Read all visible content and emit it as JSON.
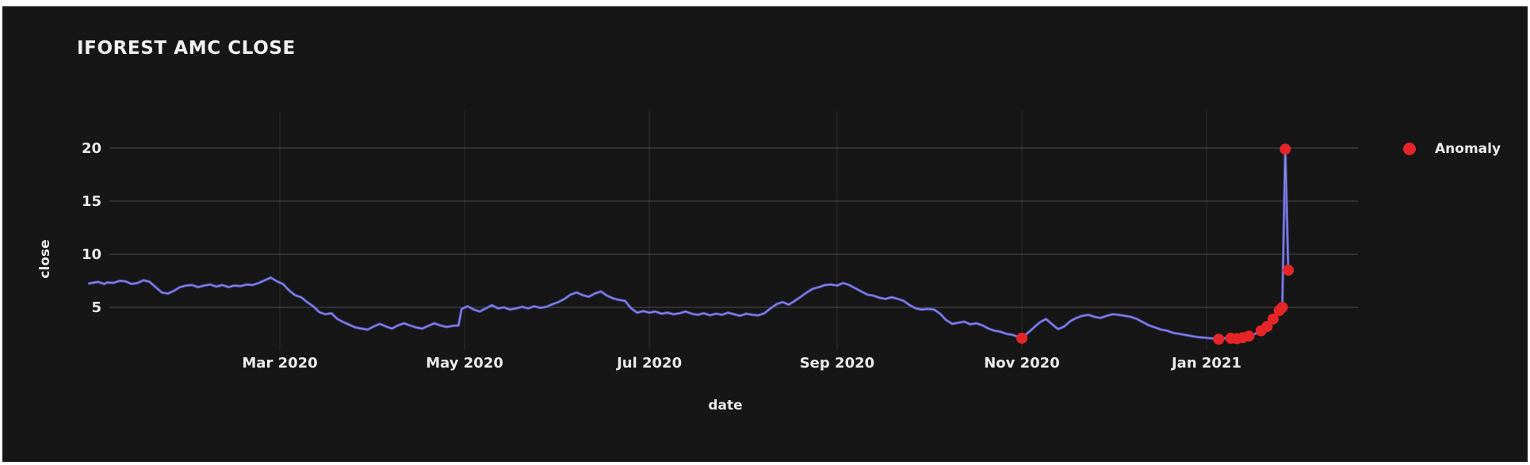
{
  "chart_data": {
    "type": "line",
    "title": "IFOREST AMC CLOSE",
    "xlabel": "date",
    "ylabel": "close",
    "x_unit": "days since 2020-01-01",
    "x_range": [
      -3.1,
      416
    ],
    "y_range": [
      0.97,
      23.5
    ],
    "grid": true,
    "legend_position": "right",
    "legend": [
      {
        "label": "Anomaly"
      }
    ],
    "y_ticks": [
      5,
      10,
      15,
      20
    ],
    "x_ticks": [
      {
        "label": "Mar 2020",
        "day": 60
      },
      {
        "label": "May 2020",
        "day": 121
      },
      {
        "label": "Jul 2020",
        "day": 182
      },
      {
        "label": "Sep 2020",
        "day": 244
      },
      {
        "label": "Nov 2020",
        "day": 305
      },
      {
        "label": "Jan 2021",
        "day": 366
      }
    ],
    "series": [
      {
        "name": "close",
        "points": [
          [
            -3,
            7.25
          ],
          [
            0,
            7.4
          ],
          [
            2,
            7.2
          ],
          [
            3,
            7.35
          ],
          [
            5,
            7.3
          ],
          [
            7,
            7.5
          ],
          [
            9,
            7.45
          ],
          [
            11,
            7.2
          ],
          [
            13,
            7.3
          ],
          [
            15,
            7.55
          ],
          [
            17,
            7.4
          ],
          [
            19,
            6.9
          ],
          [
            21,
            6.4
          ],
          [
            23,
            6.3
          ],
          [
            25,
            6.55
          ],
          [
            27,
            6.9
          ],
          [
            29,
            7.05
          ],
          [
            31,
            7.1
          ],
          [
            33,
            6.9
          ],
          [
            35,
            7.05
          ],
          [
            37,
            7.15
          ],
          [
            39,
            6.95
          ],
          [
            41,
            7.1
          ],
          [
            43,
            6.9
          ],
          [
            45,
            7.05
          ],
          [
            47,
            7.0
          ],
          [
            49,
            7.15
          ],
          [
            51,
            7.1
          ],
          [
            53,
            7.3
          ],
          [
            55,
            7.55
          ],
          [
            57,
            7.8
          ],
          [
            59,
            7.45
          ],
          [
            61,
            7.2
          ],
          [
            63,
            6.6
          ],
          [
            65,
            6.15
          ],
          [
            67,
            5.95
          ],
          [
            69,
            5.5
          ],
          [
            71,
            5.1
          ],
          [
            73,
            4.55
          ],
          [
            75,
            4.35
          ],
          [
            77,
            4.45
          ],
          [
            79,
            3.9
          ],
          [
            81,
            3.6
          ],
          [
            83,
            3.35
          ],
          [
            85,
            3.1
          ],
          [
            87,
            3.0
          ],
          [
            89,
            2.9
          ],
          [
            91,
            3.2
          ],
          [
            93,
            3.45
          ],
          [
            95,
            3.2
          ],
          [
            97,
            3.0
          ],
          [
            99,
            3.3
          ],
          [
            101,
            3.5
          ],
          [
            103,
            3.3
          ],
          [
            105,
            3.1
          ],
          [
            107,
            3.0
          ],
          [
            109,
            3.25
          ],
          [
            111,
            3.5
          ],
          [
            113,
            3.3
          ],
          [
            115,
            3.15
          ],
          [
            117,
            3.25
          ],
          [
            119,
            3.3
          ],
          [
            120,
            4.85
          ],
          [
            122,
            5.1
          ],
          [
            124,
            4.8
          ],
          [
            126,
            4.6
          ],
          [
            128,
            4.9
          ],
          [
            130,
            5.2
          ],
          [
            132,
            4.9
          ],
          [
            134,
            5.0
          ],
          [
            136,
            4.8
          ],
          [
            138,
            4.9
          ],
          [
            140,
            5.05
          ],
          [
            142,
            4.9
          ],
          [
            144,
            5.1
          ],
          [
            146,
            4.95
          ],
          [
            148,
            5.05
          ],
          [
            150,
            5.3
          ],
          [
            152,
            5.5
          ],
          [
            154,
            5.8
          ],
          [
            156,
            6.2
          ],
          [
            158,
            6.4
          ],
          [
            160,
            6.15
          ],
          [
            162,
            6.0
          ],
          [
            164,
            6.3
          ],
          [
            166,
            6.5
          ],
          [
            168,
            6.1
          ],
          [
            170,
            5.85
          ],
          [
            172,
            5.7
          ],
          [
            174,
            5.6
          ],
          [
            176,
            4.9
          ],
          [
            178,
            4.5
          ],
          [
            180,
            4.65
          ],
          [
            182,
            4.5
          ],
          [
            184,
            4.6
          ],
          [
            186,
            4.4
          ],
          [
            188,
            4.5
          ],
          [
            190,
            4.35
          ],
          [
            192,
            4.45
          ],
          [
            194,
            4.6
          ],
          [
            196,
            4.4
          ],
          [
            198,
            4.3
          ],
          [
            200,
            4.45
          ],
          [
            202,
            4.25
          ],
          [
            204,
            4.4
          ],
          [
            206,
            4.3
          ],
          [
            208,
            4.5
          ],
          [
            210,
            4.35
          ],
          [
            212,
            4.2
          ],
          [
            214,
            4.4
          ],
          [
            216,
            4.3
          ],
          [
            218,
            4.25
          ],
          [
            220,
            4.45
          ],
          [
            222,
            4.9
          ],
          [
            224,
            5.3
          ],
          [
            226,
            5.5
          ],
          [
            228,
            5.25
          ],
          [
            230,
            5.6
          ],
          [
            232,
            6.0
          ],
          [
            234,
            6.4
          ],
          [
            236,
            6.75
          ],
          [
            238,
            6.9
          ],
          [
            240,
            7.1
          ],
          [
            242,
            7.15
          ],
          [
            244,
            7.05
          ],
          [
            246,
            7.3
          ],
          [
            248,
            7.1
          ],
          [
            250,
            6.8
          ],
          [
            252,
            6.5
          ],
          [
            254,
            6.2
          ],
          [
            256,
            6.1
          ],
          [
            258,
            5.9
          ],
          [
            260,
            5.8
          ],
          [
            262,
            5.95
          ],
          [
            264,
            5.8
          ],
          [
            266,
            5.6
          ],
          [
            268,
            5.2
          ],
          [
            270,
            4.9
          ],
          [
            272,
            4.8
          ],
          [
            274,
            4.85
          ],
          [
            276,
            4.8
          ],
          [
            278,
            4.4
          ],
          [
            280,
            3.8
          ],
          [
            282,
            3.45
          ],
          [
            284,
            3.55
          ],
          [
            286,
            3.65
          ],
          [
            288,
            3.4
          ],
          [
            290,
            3.5
          ],
          [
            292,
            3.3
          ],
          [
            294,
            3.0
          ],
          [
            296,
            2.8
          ],
          [
            298,
            2.7
          ],
          [
            300,
            2.5
          ],
          [
            302,
            2.4
          ],
          [
            304,
            2.2
          ],
          [
            305,
            2.1
          ],
          [
            307,
            2.6
          ],
          [
            309,
            3.1
          ],
          [
            311,
            3.6
          ],
          [
            313,
            3.9
          ],
          [
            315,
            3.4
          ],
          [
            317,
            2.95
          ],
          [
            319,
            3.2
          ],
          [
            321,
            3.7
          ],
          [
            323,
            4.0
          ],
          [
            325,
            4.2
          ],
          [
            327,
            4.3
          ],
          [
            329,
            4.1
          ],
          [
            331,
            4.0
          ],
          [
            333,
            4.2
          ],
          [
            335,
            4.35
          ],
          [
            337,
            4.3
          ],
          [
            339,
            4.2
          ],
          [
            341,
            4.1
          ],
          [
            343,
            3.9
          ],
          [
            345,
            3.6
          ],
          [
            347,
            3.3
          ],
          [
            349,
            3.1
          ],
          [
            351,
            2.9
          ],
          [
            353,
            2.8
          ],
          [
            355,
            2.6
          ],
          [
            357,
            2.5
          ],
          [
            359,
            2.4
          ],
          [
            361,
            2.3
          ],
          [
            363,
            2.2
          ],
          [
            365,
            2.15
          ],
          [
            367,
            2.1
          ],
          [
            369,
            2.05
          ],
          [
            370,
            2.0
          ],
          [
            372,
            2.1
          ],
          [
            374,
            2.1
          ],
          [
            376,
            2.05
          ],
          [
            378,
            2.15
          ],
          [
            380,
            2.3
          ],
          [
            382,
            2.5
          ],
          [
            384,
            2.8
          ],
          [
            386,
            3.2
          ],
          [
            388,
            3.9
          ],
          [
            389,
            4.4
          ],
          [
            390,
            4.7
          ],
          [
            391,
            5.0
          ],
          [
            392,
            19.9
          ],
          [
            393,
            8.5
          ]
        ]
      }
    ],
    "anomalies": {
      "name": "Anomaly",
      "points": [
        [
          305,
          2.1
        ],
        [
          370,
          2.0
        ],
        [
          374,
          2.1
        ],
        [
          376,
          2.05
        ],
        [
          378,
          2.15
        ],
        [
          380,
          2.3
        ],
        [
          384,
          2.8
        ],
        [
          386,
          3.2
        ],
        [
          388,
          3.9
        ],
        [
          390,
          4.7
        ],
        [
          391,
          5.0
        ],
        [
          392,
          19.9
        ],
        [
          393,
          8.5
        ]
      ]
    }
  },
  "colors": {
    "frame": "#ffffff",
    "background": "#161616",
    "line": "#5353c2",
    "line_highlight": "#9a9ae4",
    "anomaly": "#e62528",
    "grid_major": "rgba(255,255,255,0.16)",
    "grid_minor": "rgba(255,255,255,0.07)",
    "text": "#ececec"
  }
}
